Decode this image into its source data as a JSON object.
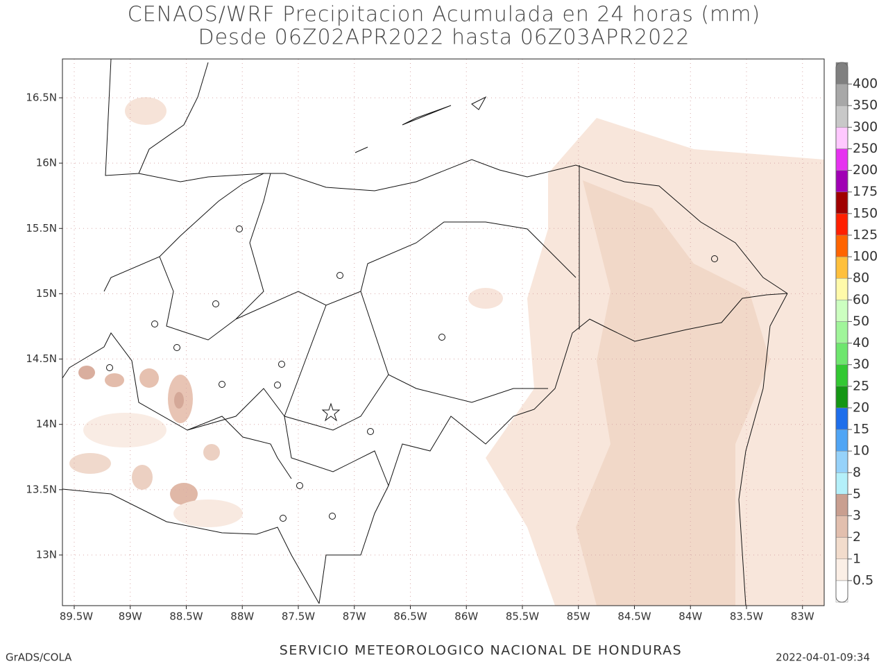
{
  "title": {
    "line1": "CENAOS/WRF Precipitacion Acumulada en 24 horas (mm)",
    "line2": "Desde 06Z02APR2022 hasta 06Z03APR2022"
  },
  "lat_labels": [
    "16.5N",
    "16N",
    "15.5N",
    "15N",
    "14.5N",
    "14N",
    "13.5N",
    "13N"
  ],
  "lon_labels": [
    "89.5W",
    "89W",
    "88.5W",
    "88W",
    "87.5W",
    "87W",
    "86.5W",
    "86W",
    "85.5W",
    "85W",
    "84.5W",
    "84W",
    "83.5W",
    "83W"
  ],
  "colorbar": {
    "labels": [
      "0.5",
      "1",
      "2",
      "3",
      "5",
      "8",
      "10",
      "15",
      "20",
      "25",
      "30",
      "40",
      "50",
      "60",
      "80",
      "100",
      "125",
      "150",
      "175",
      "200",
      "250",
      "300",
      "350",
      "400"
    ],
    "colors": [
      "#ffffff",
      "#fbefe6",
      "#f2dccc",
      "#e2bfae",
      "#c99f90",
      "#b4f0fa",
      "#96d2fa",
      "#50a5f5",
      "#1e6eeb",
      "#149614",
      "#32c832",
      "#6ee66e",
      "#a0f59a",
      "#ccffc0",
      "#fffaaa",
      "#ffc03c",
      "#ff6400",
      "#ff2000",
      "#a00000",
      "#a000b4",
      "#e632f0",
      "#ffc8ff",
      "#c8c8c8",
      "#a8a8a8",
      "#808080"
    ]
  },
  "footer": {
    "left": "GrADS/COLA",
    "center": "SERVICIO METEOROLOGICO NACIONAL DE HONDURAS",
    "right": "2022-04-01-09:34"
  }
}
